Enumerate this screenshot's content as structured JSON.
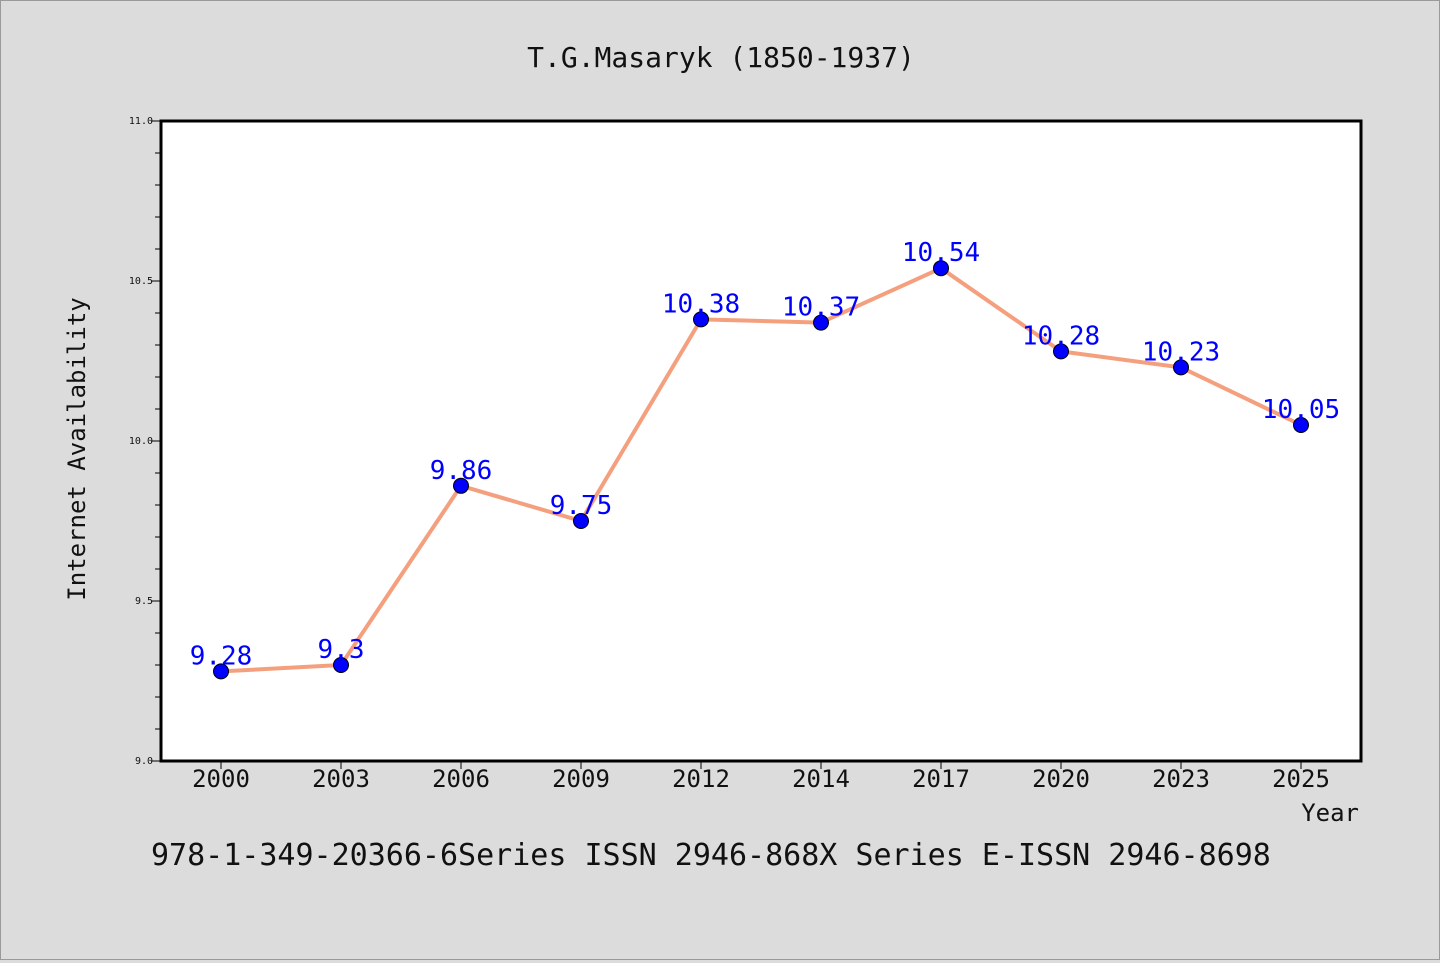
{
  "chart_data": {
    "type": "line",
    "title": "T.G.Masaryk (1850-1937)",
    "xlabel": "Year",
    "ylabel": "Internet Availability",
    "categories": [
      "2000",
      "2003",
      "2006",
      "2009",
      "2012",
      "2014",
      "2017",
      "2020",
      "2023",
      "2025"
    ],
    "series": [
      {
        "values": [
          9.28,
          9.3,
          9.86,
          9.75,
          10.38,
          10.37,
          10.54,
          10.28,
          10.23,
          10.05
        ],
        "data_labels": [
          "9.28",
          "9.3",
          "9.86",
          "9.75",
          "10.38",
          "10.37",
          "10.54",
          "10.28",
          "10.23",
          "10.05"
        ],
        "line_color": "#f4a07e",
        "marker_color": "#0000ff"
      }
    ],
    "ylim": [
      9.0,
      11.0
    ],
    "yticks": [
      9.0,
      9.5,
      10.0,
      10.5,
      11.0
    ],
    "ytick_labels": [
      "9.0",
      "9.5",
      "10.0",
      "10.5",
      "11.0"
    ],
    "grid": false,
    "legend": "none",
    "label_color": "#0000ff"
  },
  "footer_text": "978-1-349-20366-6Series ISSN 2946-868X Series E-ISSN 2946-8698",
  "colors": {
    "background": "#dcdcdc",
    "plot_background": "#ffffff",
    "axis": "#000000"
  }
}
